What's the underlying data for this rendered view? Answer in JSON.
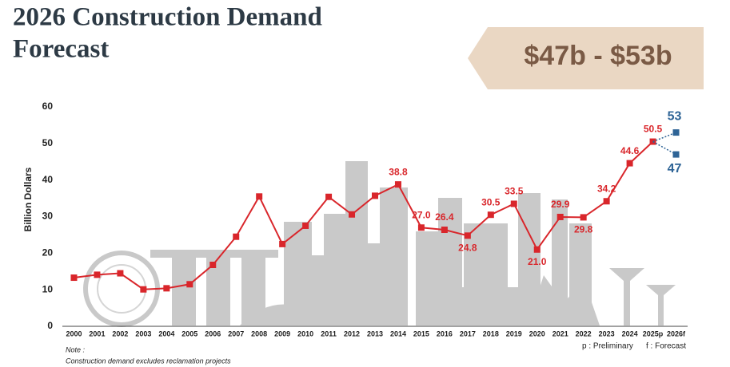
{
  "chart_data": {
    "type": "line",
    "title": [
      "2026 Construction Demand",
      "Forecast"
    ],
    "banner": "$47b - $53b",
    "y_label": "Billion Dollars",
    "categories": [
      "2000",
      "2001",
      "2002",
      "2003",
      "2004",
      "2005",
      "2006",
      "2007",
      "2008",
      "2009",
      "2010",
      "2011",
      "2012",
      "2013",
      "2014",
      "2015",
      "2016",
      "2017",
      "2018",
      "2019",
      "2020",
      "2021",
      "2022",
      "2023",
      "2024",
      "2025p",
      "2026f"
    ],
    "series": [
      {
        "color": "#d9262b",
        "values": [
          13.3,
          14.1,
          14.5,
          10.1,
          10.4,
          11.5,
          16.8,
          24.5,
          35.5,
          22.5,
          27.5,
          35.4,
          30.6,
          35.7,
          38.8,
          27.0,
          26.4,
          24.8,
          30.5,
          33.5,
          21.0,
          29.9,
          29.8,
          34.2,
          44.6,
          50.5,
          null
        ],
        "value_labels": [
          null,
          null,
          null,
          null,
          null,
          null,
          null,
          null,
          null,
          null,
          null,
          null,
          null,
          null,
          "38.8",
          "27.0",
          "26.4",
          "24.8",
          "30.5",
          "33.5",
          "21.0",
          "29.9",
          "29.8",
          "34.2",
          "44.6",
          "50.5",
          null
        ]
      }
    ],
    "forecast": {
      "color": "#2e6496",
      "high": 53,
      "low": 47
    },
    "ylim": [
      0,
      60
    ],
    "yticks": [
      0,
      10,
      20,
      30,
      40,
      50,
      60
    ],
    "note": [
      "Note :",
      "Construction demand excludes reclamation projects"
    ],
    "legend": [
      "p : Preliminary",
      "f : Forecast"
    ]
  }
}
